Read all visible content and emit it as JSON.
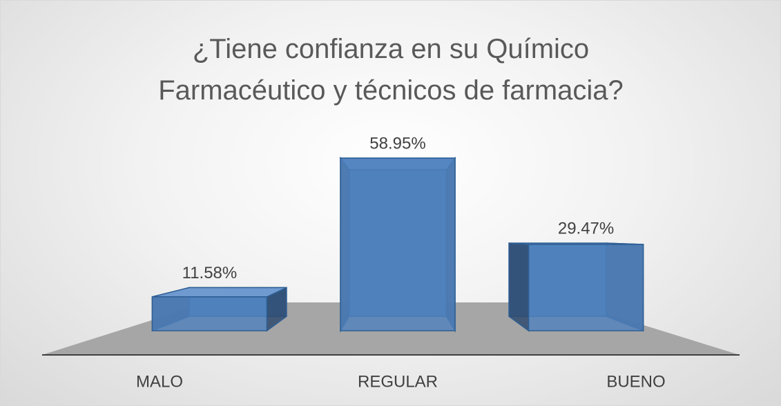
{
  "chart_data": {
    "type": "bar3d",
    "title": "¿Tiene confianza en su Químico Farmacéutico y técnicos de farmacia?",
    "categories": [
      "MALO",
      "REGULAR",
      "BUENO"
    ],
    "values": [
      11.58,
      58.95,
      29.47
    ],
    "value_labels": [
      "11.58%",
      "58.95%",
      "29.47%"
    ],
    "color": "#4f81bd"
  }
}
